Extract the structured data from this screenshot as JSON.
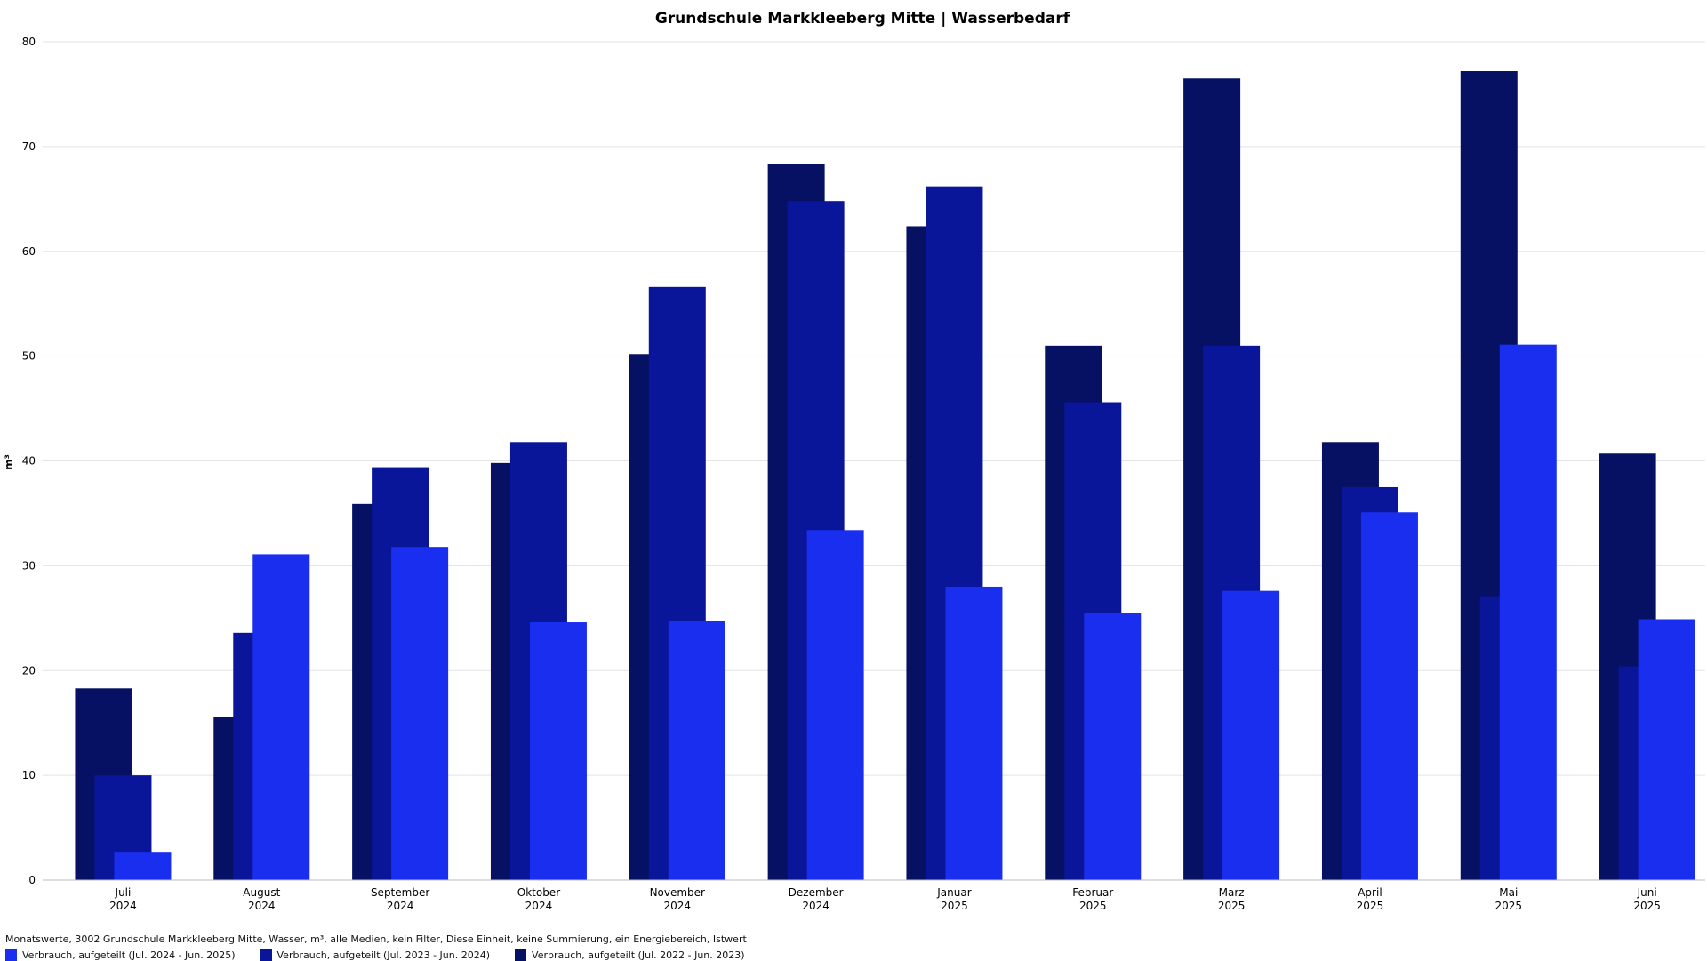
{
  "chart_data": {
    "type": "bar",
    "title": "Grundschule Markkleeberg Mitte | Wasserbedarf",
    "ylabel": "m³",
    "xlabel": "",
    "ylim": [
      0,
      80
    ],
    "yticks": [
      "0",
      "10",
      "20",
      "30",
      "40",
      "50",
      "60",
      "70",
      "80"
    ],
    "grid": true,
    "legend_position": "bottom-left",
    "categories": [
      {
        "month": "Juli",
        "year": "2024"
      },
      {
        "month": "August",
        "year": "2024"
      },
      {
        "month": "September",
        "year": "2024"
      },
      {
        "month": "Oktober",
        "year": "2024"
      },
      {
        "month": "November",
        "year": "2024"
      },
      {
        "month": "Dezember",
        "year": "2024"
      },
      {
        "month": "Januar",
        "year": "2025"
      },
      {
        "month": "Februar",
        "year": "2025"
      },
      {
        "month": "Marz",
        "year": "2025"
      },
      {
        "month": "April",
        "year": "2025"
      },
      {
        "month": "Mai",
        "year": "2025"
      },
      {
        "month": "Juni",
        "year": "2025"
      }
    ],
    "series": [
      {
        "name": "Verbrauch, aufgeteilt (Jul. 2022 - Jun. 2023)",
        "color": "#061163",
        "values": [
          18.3,
          15.6,
          35.9,
          39.8,
          50.2,
          68.3,
          62.4,
          51.0,
          76.5,
          41.8,
          77.2,
          40.7
        ]
      },
      {
        "name": "Verbrauch, aufgeteilt (Jul. 2023 - Jun. 2024)",
        "color": "#0a169a",
        "values": [
          10.0,
          23.6,
          39.4,
          41.8,
          56.6,
          64.8,
          66.2,
          45.6,
          51.0,
          37.5,
          27.1,
          20.4
        ]
      },
      {
        "name": "Verbrauch, aufgeteilt (Jul. 2024 - Jun. 2025)",
        "color": "#1a2ef0",
        "values": [
          2.7,
          31.1,
          31.8,
          24.6,
          24.7,
          33.4,
          28.0,
          25.5,
          27.6,
          35.1,
          51.1,
          24.9
        ]
      }
    ]
  },
  "footer": {
    "text": "Monatswerte, 3002 Grundschule Markkleeberg Mitte, Wasser, m³, alle Medien, kein Filter, Diese Einheit, keine Summierung, ein Energiebereich, Istwert"
  },
  "legend": {
    "items": [
      {
        "label": "Verbrauch, aufgeteilt (Jul. 2024 - Jun. 2025)",
        "color": "#1a2ef0"
      },
      {
        "label": "Verbrauch, aufgeteilt (Jul. 2023 - Jun. 2024)",
        "color": "#0a169a"
      },
      {
        "label": "Verbrauch, aufgeteilt (Jul. 2022 - Jun. 2023)",
        "color": "#061163"
      }
    ]
  }
}
